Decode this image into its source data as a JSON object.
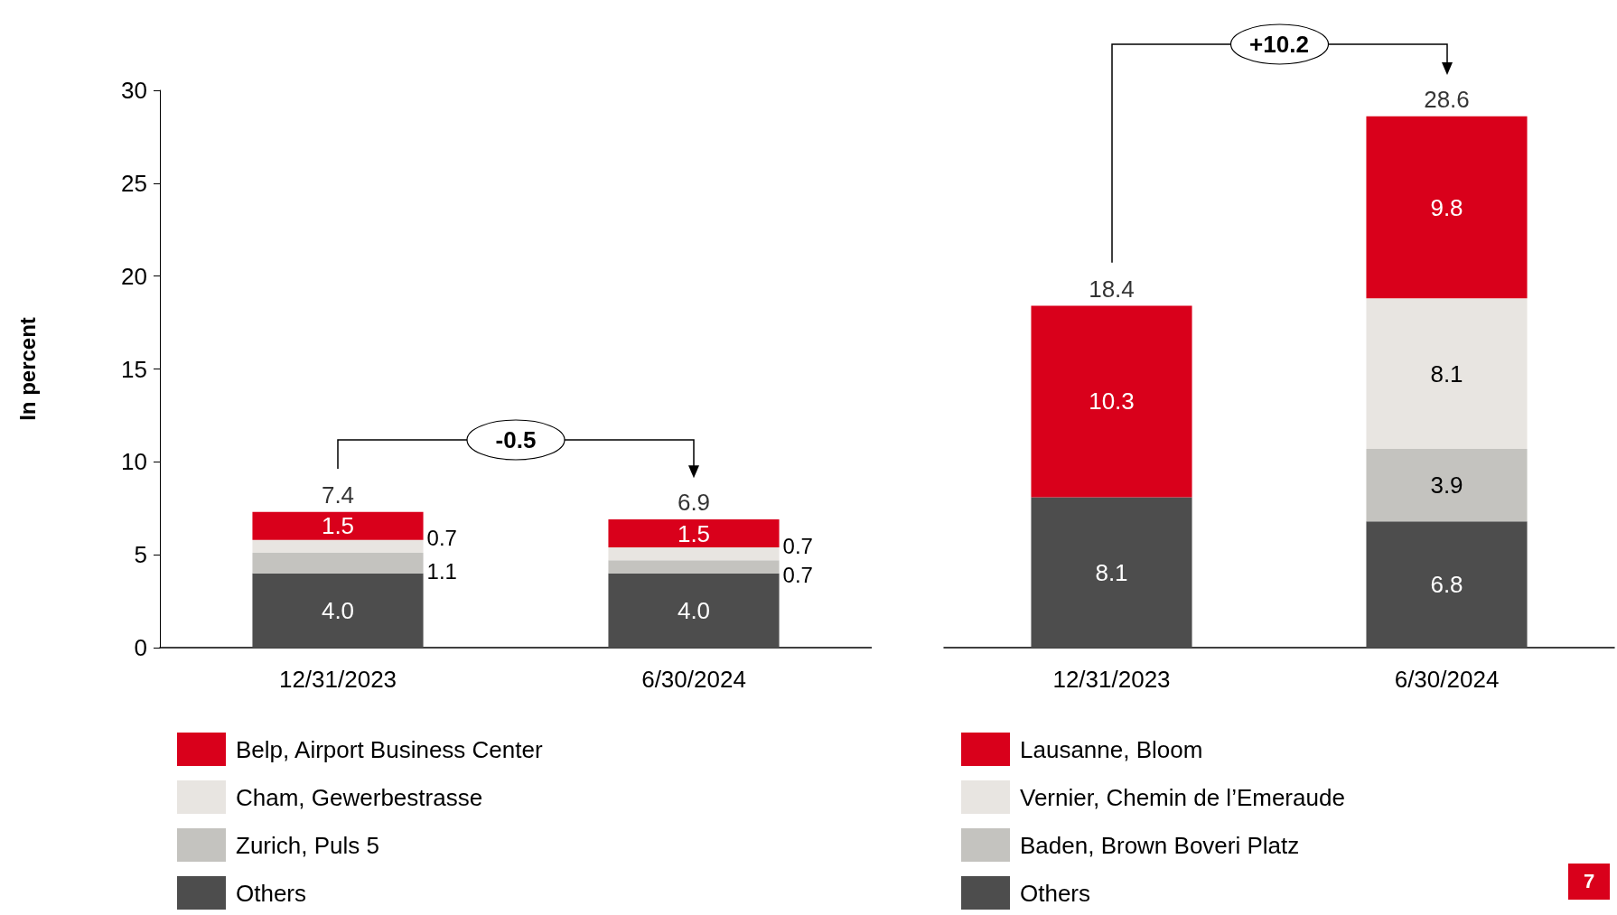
{
  "chart_data": [
    {
      "type": "bar",
      "stacked": true,
      "ylabel": "In percent",
      "categories": [
        "12/31/2023",
        "6/30/2024"
      ],
      "ylim": [
        0,
        30
      ],
      "yticks": [
        0,
        5,
        10,
        15,
        20,
        25,
        30
      ],
      "grid": false,
      "legend": "bottom",
      "series": [
        {
          "name": "Others",
          "color": "#4d4d4d",
          "values": [
            4.0,
            4.0
          ],
          "value_labels": [
            "4.0",
            "4.0"
          ]
        },
        {
          "name": "Zurich, Puls 5",
          "color": "#c4c3bf",
          "values": [
            1.1,
            0.7
          ],
          "value_labels": [
            "1.1",
            "0.7"
          ]
        },
        {
          "name": "Cham, Gewerbestrasse",
          "color": "#e8e5e1",
          "values": [
            0.7,
            0.7
          ],
          "value_labels": [
            "0.7",
            "0.7"
          ]
        },
        {
          "name": "Belp, Airport Business Center",
          "color": "#d9001b",
          "values": [
            1.5,
            1.5
          ],
          "value_labels": [
            "1.5",
            "1.5"
          ]
        }
      ],
      "totals": [
        "7.4",
        "6.9"
      ],
      "annotations": [
        "-0.5"
      ]
    },
    {
      "type": "bar",
      "stacked": true,
      "categories": [
        "12/31/2023",
        "6/30/2024"
      ],
      "ylim": [
        0,
        30
      ],
      "tick_labels": "x",
      "grid": false,
      "legend": "bottom",
      "series": [
        {
          "name": "Others",
          "color": "#4d4d4d",
          "values": [
            8.1,
            6.8
          ],
          "value_labels": [
            "8.1",
            "6.8"
          ]
        },
        {
          "name": "Baden, Brown Boveri Platz",
          "color": "#c4c3bf",
          "values": [
            null,
            3.9
          ],
          "value_labels": [
            null,
            "3.9"
          ]
        },
        {
          "name": "Vernier, Chemin de l’Emeraude",
          "color": "#e8e5e1",
          "values": [
            null,
            8.1
          ],
          "value_labels": [
            null,
            "8.1"
          ]
        },
        {
          "name": "Lausanne, Bloom",
          "color": "#d9001b",
          "values": [
            10.3,
            9.8
          ],
          "value_labels": [
            "10.3",
            "9.8"
          ]
        }
      ],
      "totals": [
        "18.4",
        "28.6"
      ],
      "annotations": [
        "+10.2",
        "7"
      ]
    }
  ]
}
